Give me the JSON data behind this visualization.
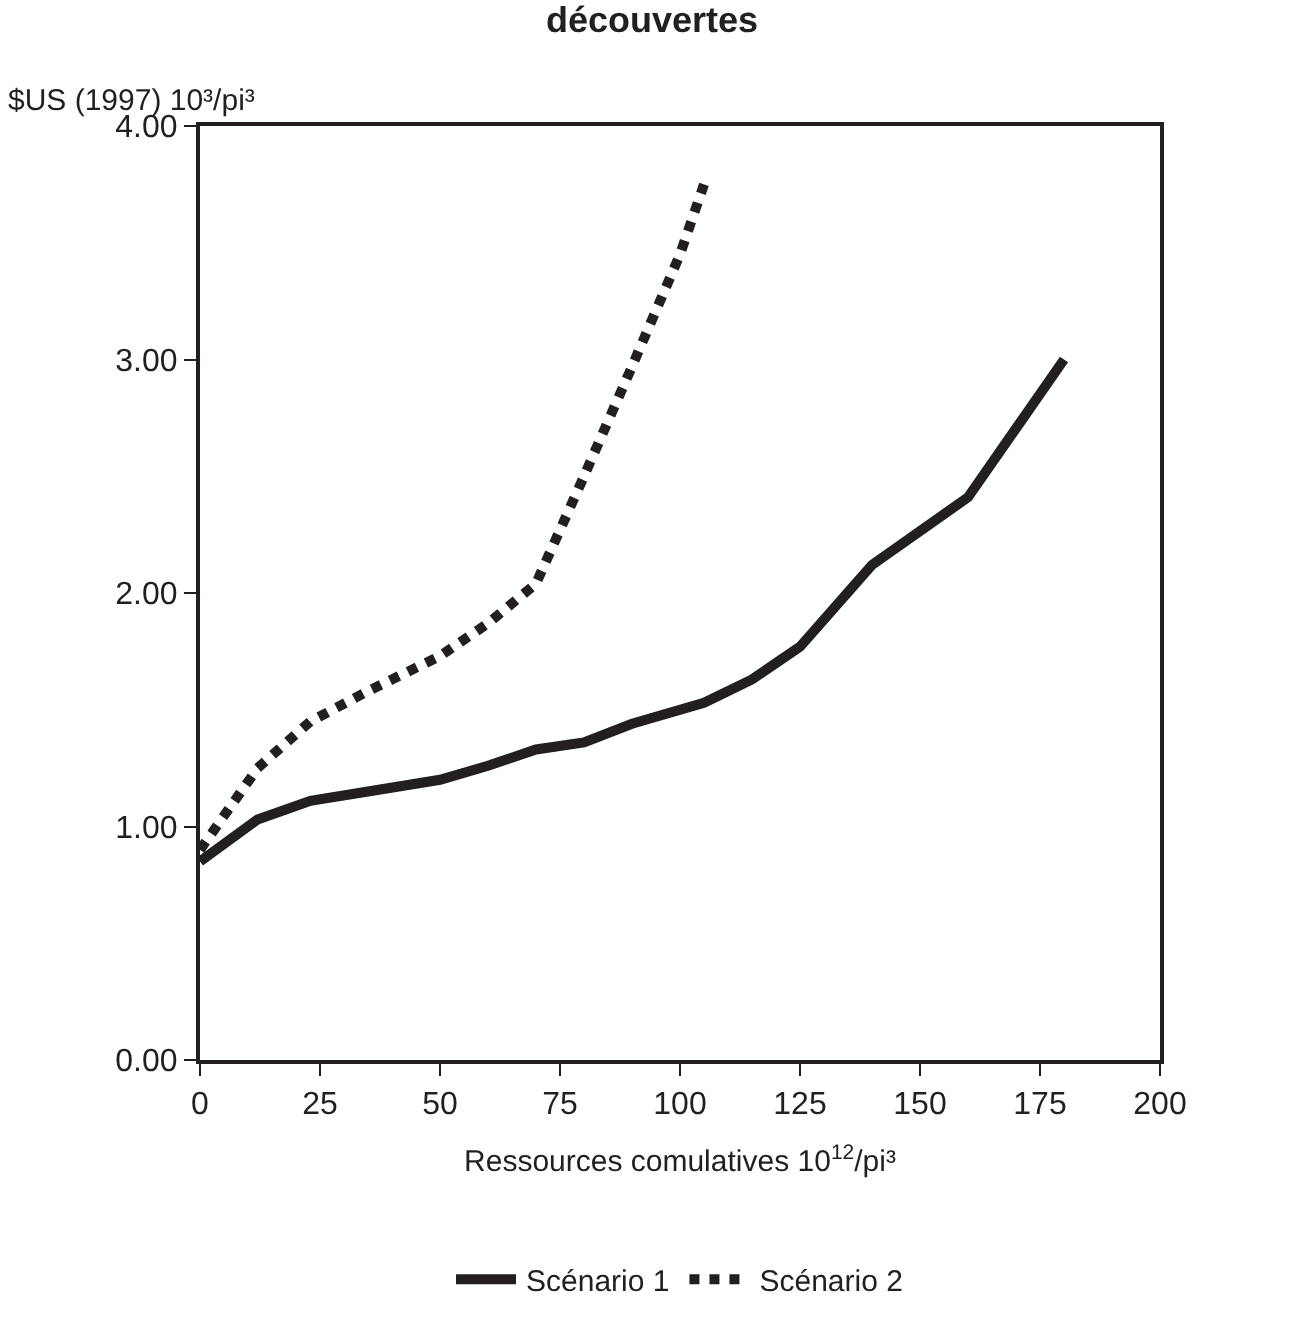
{
  "chart_data": {
    "type": "line",
    "title": "découvertes",
    "ylabel": "$US (1997) 10³/pi³",
    "xlabel": "Ressources comulatives 10$^{12}$/pi³",
    "xlim": [
      0,
      200
    ],
    "xticks": [
      0,
      25,
      50,
      75,
      100,
      125,
      150,
      175,
      200
    ],
    "ylim": [
      0,
      4
    ],
    "yticks": [
      {
        "value": 0,
        "label": "0.00"
      },
      {
        "value": 1,
        "label": "1.00"
      },
      {
        "value": 2,
        "label": "2.00"
      },
      {
        "value": 3,
        "label": "3.00"
      },
      {
        "value": 4,
        "label": "4.00"
      }
    ],
    "legend": "bottom",
    "series": [
      {
        "name": "Scénario 1",
        "color": "#231f20",
        "line_style": "solid",
        "x": [
          0,
          12,
          23,
          35,
          50,
          60,
          70,
          80,
          90,
          105,
          115,
          125,
          140,
          160,
          180
        ],
        "values": [
          0.85,
          1.03,
          1.11,
          1.15,
          1.2,
          1.26,
          1.33,
          1.36,
          1.44,
          1.53,
          1.63,
          1.77,
          2.12,
          2.41,
          3.0
        ]
      },
      {
        "name": "Scénario 2",
        "color": "#231f20",
        "line_style": "dotted",
        "x": [
          0,
          12,
          23,
          35,
          50,
          60,
          70,
          80,
          90,
          100,
          105
        ],
        "values": [
          0.9,
          1.25,
          1.45,
          1.58,
          1.73,
          1.87,
          2.04,
          2.5,
          2.97,
          3.45,
          3.75
        ]
      }
    ]
  }
}
